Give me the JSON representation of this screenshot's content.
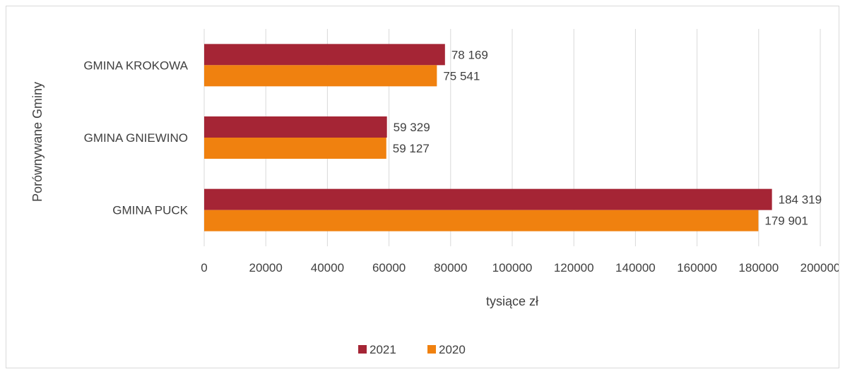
{
  "chart_data": {
    "type": "bar",
    "orientation": "horizontal",
    "categories": [
      "GMINA KROKOWA",
      "GMINA GNIEWINO",
      "GMINA PUCK"
    ],
    "series": [
      {
        "name": "2021",
        "color": "#a52535",
        "values": [
          78169,
          59329,
          184319
        ],
        "labels": [
          "78 169",
          "59 329",
          "184 319"
        ]
      },
      {
        "name": "2020",
        "color": "#f0810f",
        "values": [
          75541,
          59127,
          179901
        ],
        "labels": [
          "75 541",
          "59 127",
          "179 901"
        ]
      }
    ],
    "xlim": [
      0,
      200000
    ],
    "xticks": [
      0,
      20000,
      40000,
      60000,
      80000,
      100000,
      120000,
      140000,
      160000,
      180000,
      200000
    ],
    "xtick_labels": [
      "0",
      "20000",
      "40000",
      "60000",
      "80000",
      "100000",
      "120000",
      "140000",
      "160000",
      "180000",
      "200000"
    ],
    "xlabel": "tysiące zł",
    "ylabel": "Porównywane Gminy",
    "grid": "vertical",
    "legend_position": "bottom"
  }
}
